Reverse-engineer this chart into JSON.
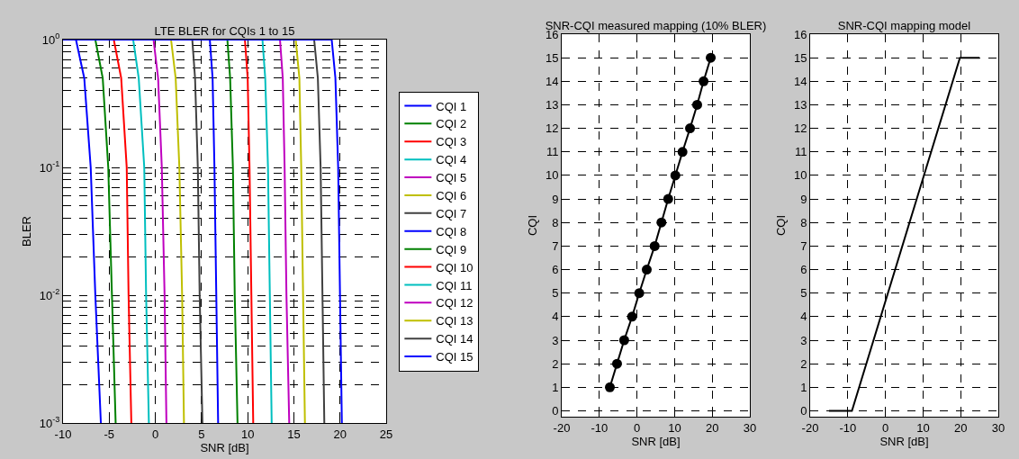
{
  "chart_data": [
    {
      "type": "line",
      "title": "LTE BLER for CQIs 1 to 15",
      "xlabel": "SNR [dB]",
      "ylabel": "BLER",
      "log": "y",
      "grid": true,
      "legend": "right",
      "marker": "none",
      "line_style": "solid",
      "xlim": [
        -10,
        25
      ],
      "xticks": [
        -10,
        -5,
        0,
        5,
        10,
        15,
        20,
        25
      ],
      "ylim": [
        0.001,
        1
      ],
      "yticks": [
        {
          "value": 1,
          "label": "10$^{0}$"
        },
        {
          "value": 0.1,
          "label": "10$^{-1}$"
        },
        {
          "value": 0.01,
          "label": "10$^{-2}$"
        },
        {
          "value": 0.001,
          "label": "10$^{-3}$"
        }
      ],
      "series": [
        {
          "name": "CQI 1",
          "color": "#0000ff",
          "x": [
            -10,
            -8.6,
            -7.7,
            -7.0,
            -6.5,
            -5.9
          ],
          "values": [
            1,
            1,
            0.5,
            0.1,
            0.01,
            0.001
          ]
        },
        {
          "name": "CQI 2",
          "color": "#008000",
          "x": [
            -10,
            -6.5,
            -5.7,
            -5.1,
            -4.7,
            -4.3
          ],
          "values": [
            1,
            1,
            0.5,
            0.1,
            0.01,
            0.001
          ]
        },
        {
          "name": "CQI 3",
          "color": "#ff0000",
          "x": [
            -10,
            -4.5,
            -3.7,
            -3.1,
            -2.9,
            -2.6
          ],
          "values": [
            1,
            1,
            0.5,
            0.1,
            0.01,
            0.001
          ]
        },
        {
          "name": "CQI 4",
          "color": "#00bfbf",
          "x": [
            -10,
            -2.4,
            -1.8,
            -1.2,
            -1.0,
            -0.7
          ],
          "values": [
            1,
            1,
            0.5,
            0.1,
            0.01,
            0.001
          ]
        },
        {
          "name": "CQI 5",
          "color": "#bf00bf",
          "x": [
            -10,
            -0.2,
            0.3,
            0.7,
            1.0,
            1.2
          ],
          "values": [
            1,
            1,
            0.5,
            0.1,
            0.01,
            0.001
          ]
        },
        {
          "name": "CQI 6",
          "color": "#bfbf00",
          "x": [
            -10,
            1.7,
            2.2,
            2.6,
            2.9,
            3.1
          ],
          "values": [
            1,
            1,
            0.5,
            0.1,
            0.01,
            0.001
          ]
        },
        {
          "name": "CQI 7",
          "color": "#404040",
          "x": [
            -10,
            4.0,
            4.3,
            4.6,
            4.8,
            5.1
          ],
          "values": [
            1,
            1,
            0.5,
            0.1,
            0.01,
            0.001
          ]
        },
        {
          "name": "CQI 8",
          "color": "#0000ff",
          "x": [
            -10,
            5.9,
            6.2,
            6.4,
            6.6,
            6.8
          ],
          "values": [
            1,
            1,
            0.5,
            0.1,
            0.01,
            0.001
          ]
        },
        {
          "name": "CQI 9",
          "color": "#008000",
          "x": [
            -10,
            7.8,
            8.1,
            8.4,
            8.6,
            8.9
          ],
          "values": [
            1,
            1,
            0.5,
            0.1,
            0.01,
            0.001
          ]
        },
        {
          "name": "CQI 10",
          "color": "#ff0000",
          "x": [
            -10,
            9.7,
            10.0,
            10.2,
            10.4,
            10.6
          ],
          "values": [
            1,
            1,
            0.5,
            0.1,
            0.01,
            0.001
          ]
        },
        {
          "name": "CQI 11",
          "color": "#00bfbf",
          "x": [
            -10,
            11.6,
            11.9,
            12.2,
            12.4,
            12.6
          ],
          "values": [
            1,
            1,
            0.5,
            0.1,
            0.01,
            0.001
          ]
        },
        {
          "name": "CQI 12",
          "color": "#bf00bf",
          "x": [
            -10,
            13.5,
            13.8,
            14.0,
            14.2,
            14.5
          ],
          "values": [
            1,
            1,
            0.5,
            0.1,
            0.01,
            0.001
          ]
        },
        {
          "name": "CQI 13",
          "color": "#bfbf00",
          "x": [
            -10,
            15.2,
            15.6,
            15.8,
            16.0,
            16.2
          ],
          "values": [
            1,
            1,
            0.5,
            0.1,
            0.01,
            0.001
          ]
        },
        {
          "name": "CQI 14",
          "color": "#404040",
          "x": [
            -10,
            17.2,
            17.6,
            17.9,
            18.1,
            18.3
          ],
          "values": [
            1,
            1,
            0.5,
            0.1,
            0.01,
            0.001
          ]
        },
        {
          "name": "CQI 15",
          "color": "#0000ff",
          "x": [
            -10,
            19.1,
            19.5,
            19.8,
            20.0,
            20.2
          ],
          "values": [
            1,
            1,
            0.5,
            0.1,
            0.01,
            0.001
          ]
        }
      ]
    },
    {
      "type": "line",
      "title": "SNR-CQI measured mapping (10% BLER)",
      "xlabel": "SNR [dB]",
      "ylabel": "CQI",
      "grid": true,
      "marker": "circle",
      "line_style": "solid",
      "xlim": [
        -20,
        30
      ],
      "xticks": [
        -20,
        -10,
        0,
        10,
        20,
        30
      ],
      "ylim": [
        -0.25,
        16
      ],
      "yticks": [
        0,
        1,
        2,
        3,
        4,
        5,
        6,
        7,
        8,
        9,
        10,
        11,
        12,
        13,
        14,
        15,
        16
      ],
      "series": [
        {
          "color": "#000000",
          "x": [
            -7.2,
            -5.3,
            -3.4,
            -1.3,
            0.6,
            2.6,
            4.7,
            6.5,
            8.3,
            10.2,
            12.1,
            14.1,
            16.0,
            17.7,
            19.6
          ],
          "values": [
            1,
            2,
            3,
            4,
            5,
            6,
            7,
            8,
            9,
            10,
            11,
            12,
            13,
            14,
            15
          ]
        }
      ]
    },
    {
      "type": "line",
      "title": "SNR-CQI mapping model",
      "xlabel": "SNR [dB]",
      "ylabel": "CQI",
      "grid": true,
      "marker": "none",
      "line_style": "solid",
      "xlim": [
        -20,
        30
      ],
      "xticks": [
        -20,
        -10,
        0,
        10,
        20,
        30
      ],
      "ylim": [
        -0.25,
        16
      ],
      "yticks": [
        0,
        1,
        2,
        3,
        4,
        5,
        6,
        7,
        8,
        9,
        10,
        11,
        12,
        13,
        14,
        15,
        16
      ],
      "series": [
        {
          "color": "#000000",
          "x": [
            -15,
            -8.9,
            19.8,
            25
          ],
          "values": [
            0,
            0,
            15,
            15
          ]
        }
      ]
    }
  ]
}
